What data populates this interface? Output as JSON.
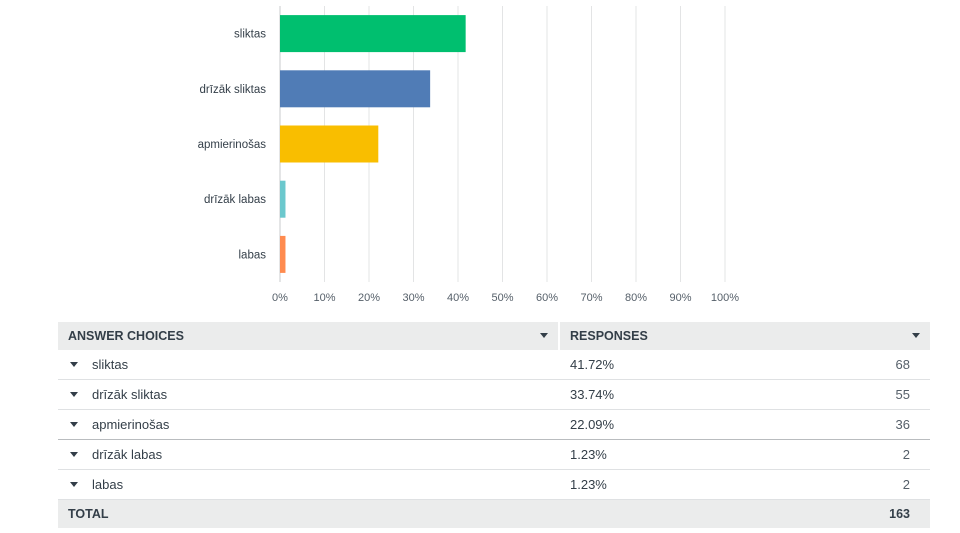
{
  "chart_data": {
    "type": "bar",
    "orientation": "horizontal",
    "categories": [
      "sliktas",
      "drīzāk sliktas",
      "apmierinošas",
      "drīzāk labas",
      "labas"
    ],
    "values": [
      41.72,
      33.74,
      22.09,
      1.23,
      1.23
    ],
    "colors": [
      "#00bf6f",
      "#507cb6",
      "#f9be00",
      "#6bc8cd",
      "#ff8b4f"
    ],
    "xlim": [
      0,
      100
    ],
    "xticks": [
      "0%",
      "10%",
      "20%",
      "30%",
      "40%",
      "50%",
      "60%",
      "70%",
      "80%",
      "90%",
      "100%"
    ],
    "grid": true
  },
  "table": {
    "header": {
      "choices": "ANSWER CHOICES",
      "responses": "RESPONSES"
    },
    "rows": [
      {
        "choice": "sliktas",
        "percent": "41.72%",
        "count": "68"
      },
      {
        "choice": "drīzāk sliktas",
        "percent": "33.74%",
        "count": "55"
      },
      {
        "choice": "apmierinošas",
        "percent": "22.09%",
        "count": "36"
      },
      {
        "choice": "drīzāk labas",
        "percent": "1.23%",
        "count": "2"
      },
      {
        "choice": "labas",
        "percent": "1.23%",
        "count": "2"
      }
    ],
    "total": {
      "label": "TOTAL",
      "count": "163"
    }
  }
}
